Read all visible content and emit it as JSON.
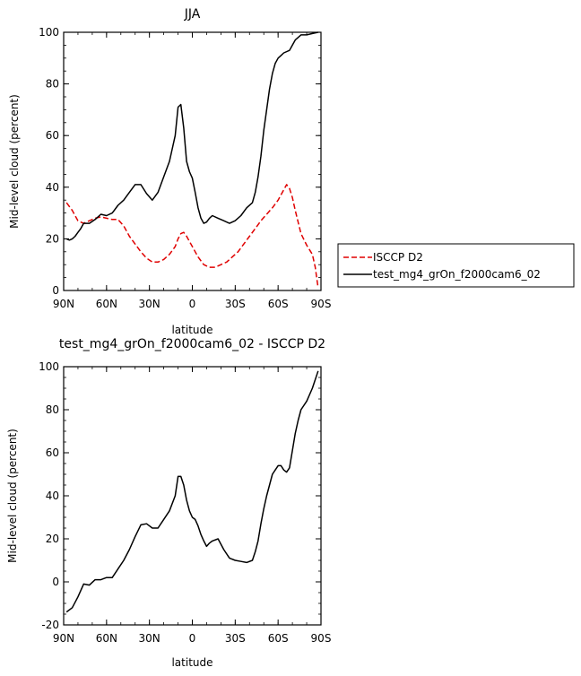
{
  "chart_data": [
    {
      "type": "line",
      "title": "JJA",
      "xlabel": "latitude",
      "ylabel": "Mid-level cloud (percent)",
      "xlim": [
        90,
        -90
      ],
      "ylim": [
        0,
        100
      ],
      "x_ticks": [
        {
          "value": 90,
          "label": "90N"
        },
        {
          "value": 60,
          "label": "60N"
        },
        {
          "value": 30,
          "label": "30N"
        },
        {
          "value": 0,
          "label": "0"
        },
        {
          "value": -30,
          "label": "30S"
        },
        {
          "value": -60,
          "label": "60S"
        },
        {
          "value": -90,
          "label": "90S"
        }
      ],
      "y_ticks": [
        0,
        20,
        40,
        60,
        80,
        100
      ],
      "legend": "right, outside plot",
      "series": [
        {
          "name": "ISCCP D2",
          "color": "#e00000",
          "dash": "dashed",
          "x": [
            88,
            84,
            80,
            76,
            72,
            68,
            64,
            60,
            56,
            52,
            48,
            44,
            40,
            36,
            32,
            28,
            24,
            20,
            16,
            12,
            10,
            8,
            6,
            4,
            2,
            0,
            -4,
            -8,
            -12,
            -16,
            -20,
            -24,
            -28,
            -32,
            -36,
            -40,
            -44,
            -48,
            -52,
            -56,
            -60,
            -64,
            -66,
            -68,
            -70,
            -72,
            -76,
            -80,
            -84,
            -86,
            -88
          ],
          "y": [
            34,
            31,
            27,
            26,
            27,
            28,
            28.5,
            28,
            27.5,
            27.5,
            25,
            21,
            18,
            15,
            12.5,
            11,
            11,
            12,
            14,
            17,
            20,
            22,
            22.5,
            21,
            19,
            17,
            13,
            10,
            9,
            9,
            10,
            11,
            13,
            15,
            18,
            21,
            24,
            27,
            29.5,
            32,
            35,
            39,
            41,
            39.5,
            36,
            31,
            22,
            17.5,
            14,
            9,
            1
          ]
        },
        {
          "name": "test_mg4_grOn_f2000cam6_02",
          "color": "#000000",
          "dash": "solid",
          "x": [
            88,
            86,
            84,
            82,
            80,
            78,
            76,
            72,
            68,
            64,
            60,
            56,
            52,
            48,
            44,
            40,
            36,
            32,
            28,
            24,
            20,
            16,
            12,
            10,
            8,
            6,
            4,
            2,
            0,
            -2,
            -4,
            -6,
            -8,
            -10,
            -12,
            -14,
            -18,
            -22,
            -26,
            -30,
            -34,
            -38,
            -42,
            -44,
            -46,
            -48,
            -50,
            -52,
            -54,
            -56,
            -58,
            -60,
            -62,
            -64,
            -68,
            -70,
            -72,
            -74,
            -76,
            -80,
            -84,
            -88
          ],
          "y": [
            20,
            19.5,
            20,
            21,
            22.5,
            24,
            26,
            26,
            27.5,
            29.5,
            29,
            30,
            33,
            35,
            38,
            41,
            41,
            37.5,
            35,
            38,
            44,
            50,
            60,
            71,
            72,
            63,
            50,
            46,
            43.5,
            38,
            32,
            28,
            26,
            26.5,
            28,
            29,
            28,
            27,
            26,
            27,
            29,
            32,
            34,
            38,
            44,
            52,
            62,
            70,
            78,
            84,
            88,
            90,
            91,
            92,
            93,
            95,
            97,
            98,
            99,
            99,
            99.5,
            100
          ]
        }
      ]
    },
    {
      "type": "line",
      "title": "test_mg4_grOn_f2000cam6_02 - ISCCP D2",
      "xlabel": "latitude",
      "ylabel": "Mid-level cloud (percent)",
      "xlim": [
        90,
        -90
      ],
      "ylim": [
        -20,
        100
      ],
      "x_ticks": [
        {
          "value": 90,
          "label": "90N"
        },
        {
          "value": 60,
          "label": "60N"
        },
        {
          "value": 30,
          "label": "30N"
        },
        {
          "value": 0,
          "label": "0"
        },
        {
          "value": -30,
          "label": "30S"
        },
        {
          "value": -60,
          "label": "60S"
        },
        {
          "value": -90,
          "label": "90S"
        }
      ],
      "y_ticks": [
        -20,
        0,
        20,
        40,
        60,
        80,
        100
      ],
      "series": [
        {
          "name": "",
          "color": "#000000",
          "dash": "solid",
          "x": [
            88,
            84,
            80,
            76,
            72,
            68,
            64,
            60,
            56,
            52,
            48,
            44,
            40,
            36,
            32,
            28,
            24,
            20,
            16,
            12,
            10,
            8,
            6,
            4,
            2,
            0,
            -2,
            -4,
            -6,
            -8,
            -10,
            -12,
            -14,
            -18,
            -22,
            -26,
            -30,
            -34,
            -38,
            -42,
            -44,
            -46,
            -48,
            -50,
            -52,
            -54,
            -56,
            -58,
            -60,
            -62,
            -64,
            -66,
            -68,
            -70,
            -72,
            -74,
            -76,
            -80,
            -84,
            -88
          ],
          "y": [
            -14,
            -12,
            -7,
            -1,
            -1.5,
            1,
            1,
            2,
            2,
            6,
            10,
            15,
            21,
            26.5,
            27,
            25,
            25,
            29,
            33,
            40,
            49,
            49,
            45,
            38,
            33,
            30,
            29,
            26,
            22,
            19,
            16.5,
            18,
            19,
            20,
            15,
            11,
            10,
            9.5,
            9,
            10,
            14,
            19,
            27,
            34,
            40,
            45,
            50,
            52,
            54,
            54,
            52,
            51,
            53,
            61,
            69,
            75,
            80,
            84,
            90,
            98
          ]
        }
      ]
    }
  ]
}
